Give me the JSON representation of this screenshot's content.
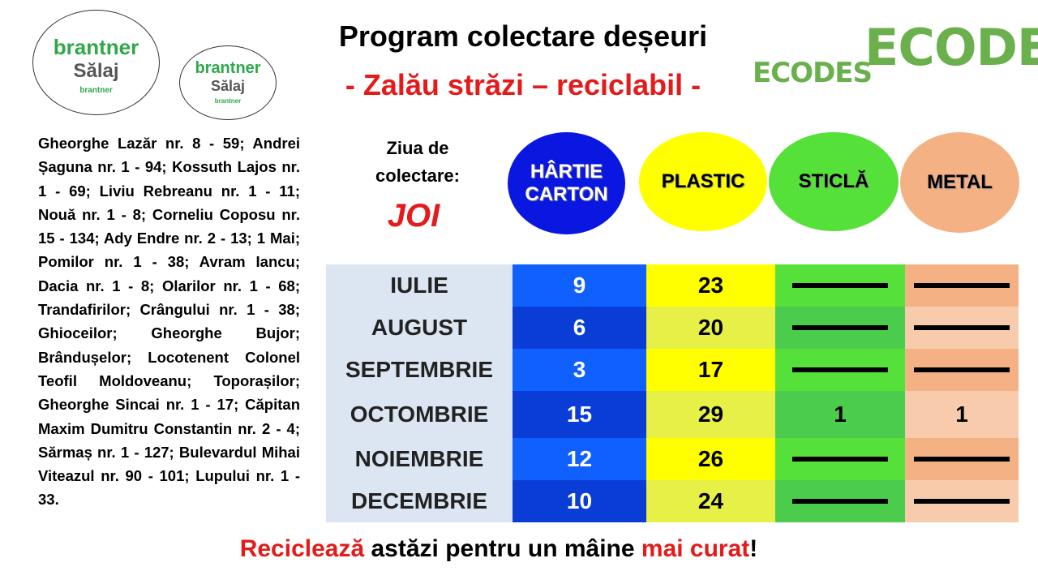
{
  "logos": {
    "brand": "brantner",
    "city": "Sălaj",
    "small": "brantner",
    "eco": "ECODES"
  },
  "header": {
    "title": "Program colectare deșeuri",
    "subtitle": "- Zalău străzi – reciclabil -"
  },
  "streets": "Gheorghe Lazăr nr. 8 - 59; Andrei Șaguna nr. 1 - 94; Kossuth Lajos nr. 1 - 69; Liviu Rebreanu nr. 1 - 11; Nouă nr. 1 - 8; Corneliu Coposu nr. 15 - 134; Ady Endre nr. 2 - 13; 1 Mai; Pomilor nr. 1 - 38; Avram Iancu; Dacia nr. 1 - 8; Olarilor nr. 1 - 68; Trandafirilor; Crângului nr. 1 - 38; Ghioceilor; Gheorghe Bujor; Brândușelor; Locotenent Colonel Teofil Moldoveanu; Toporașilor; Gheorghe Sincai nr. 1 - 17; Căpitan Maxim Dumitru Constantin nr. 2 - 4; Sărmaș nr. 1 - 127; Bulevardul Mihai Viteazul nr. 90 - 101; Lupului nr. 1 - 33.",
  "day": {
    "label": "Ziua de colectare:",
    "value": "JOI"
  },
  "categories": [
    "HÂRTIE CARTON",
    "PLASTIC",
    "STICLĂ",
    "METAL"
  ],
  "table": {
    "rows": [
      [
        "IULIE",
        9,
        23,
        null,
        null
      ],
      [
        "AUGUST",
        6,
        20,
        null,
        null
      ],
      [
        "SEPTEMBRIE",
        3,
        17,
        null,
        null
      ],
      [
        "OCTOMBRIE",
        15,
        29,
        1,
        1
      ],
      [
        "NOIEMBRIE",
        12,
        26,
        null,
        null
      ],
      [
        "DECEMBRIE",
        10,
        24,
        null,
        null
      ]
    ]
  },
  "footer": [
    "Reciclează",
    " astăzi pentru un mâine ",
    "mai curat",
    "!"
  ]
}
